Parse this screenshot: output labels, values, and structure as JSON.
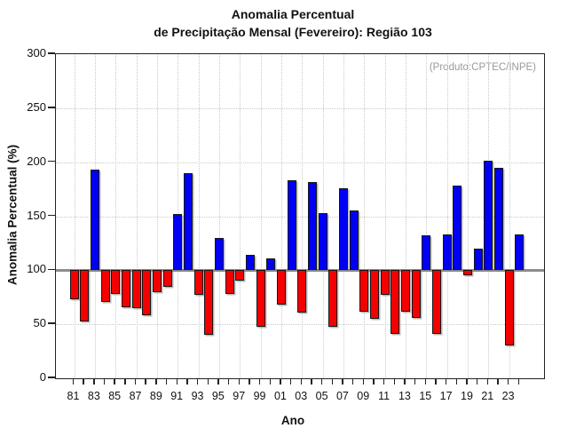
{
  "chart_data": {
    "type": "bar",
    "title_lines": [
      "Anomalia Percentual",
      "de Precipitação Mensal (Fevereiro): Região 103"
    ],
    "annotation": "(Produto:CPTEC/INPE)",
    "xlabel": "Ano",
    "ylabel": "Anomalia Percentual (%)",
    "ylim": [
      0,
      300
    ],
    "yticks": [
      0,
      50,
      100,
      150,
      200,
      250,
      300
    ],
    "baseline": 100,
    "grid": "dotted gray, vertical every 2 years, horizontal every 50 units",
    "legend": "none",
    "bar_color_above": "#0000f5",
    "bar_color_below": "#f50000",
    "baseline_color": "#8c8c8c",
    "years": [
      1981,
      1982,
      1983,
      1984,
      1985,
      1986,
      1987,
      1988,
      1989,
      1990,
      1991,
      1992,
      1993,
      1994,
      1995,
      1996,
      1997,
      1998,
      1999,
      2000,
      2001,
      2002,
      2003,
      2004,
      2005,
      2006,
      2007,
      2008,
      2009,
      2010,
      2011,
      2012,
      2013,
      2014,
      2015,
      2016,
      2017,
      2018,
      2019,
      2020,
      2021,
      2022,
      2023,
      2024
    ],
    "values": [
      73,
      53,
      193,
      71,
      78,
      66,
      65,
      58,
      80,
      85,
      152,
      190,
      77,
      40,
      130,
      78,
      90,
      114,
      48,
      111,
      68,
      183,
      61,
      182,
      153,
      48,
      176,
      155,
      62,
      55,
      77,
      41,
      62,
      56,
      132,
      41,
      133,
      178,
      95,
      120,
      201,
      195,
      30,
      133
    ],
    "x_tick_labels": [
      "81",
      "83",
      "85",
      "87",
      "89",
      "91",
      "93",
      "95",
      "97",
      "99",
      "01",
      "03",
      "05",
      "07",
      "09",
      "11",
      "13",
      "15",
      "17",
      "19",
      "21",
      "23"
    ]
  }
}
